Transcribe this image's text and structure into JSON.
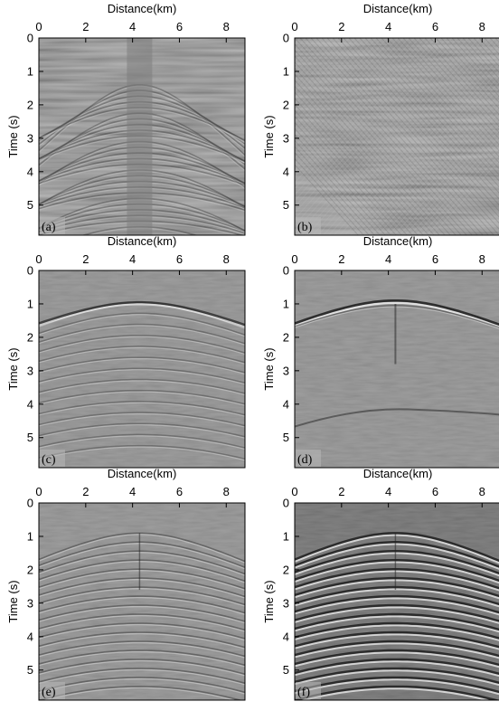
{
  "figure": {
    "panels": [
      {
        "id": "a",
        "label": "(a)",
        "style": "noise"
      },
      {
        "id": "b",
        "label": "(b)",
        "style": "cross"
      },
      {
        "id": "c",
        "label": "(c)",
        "style": "hyperbola"
      },
      {
        "id": "d",
        "label": "(d)",
        "style": "sparse"
      },
      {
        "id": "e",
        "label": "(e)",
        "style": "layered"
      },
      {
        "id": "f",
        "label": "(f)",
        "style": "layered-strong"
      }
    ],
    "x_axis": {
      "label": "Distance(km)",
      "ticks": [
        0,
        2,
        4,
        6,
        8
      ],
      "range": [
        0,
        8.8
      ]
    },
    "y_axis": {
      "label": "Time (s)",
      "ticks": [
        0,
        1,
        2,
        3,
        4,
        5
      ],
      "range": [
        0,
        5.9
      ]
    },
    "colors": {
      "background_a": "#7e7e7e",
      "background_b": "#8a8a8a",
      "background_c": "#8f8f8f",
      "background_f": "#6f6f6f"
    }
  }
}
